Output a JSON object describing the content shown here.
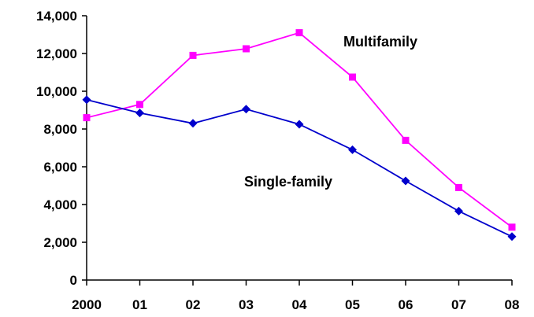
{
  "chart_data": {
    "type": "line",
    "title": "",
    "xlabel": "",
    "ylabel": "",
    "categories": [
      "2000",
      "01",
      "02",
      "03",
      "04",
      "05",
      "06",
      "07",
      "08"
    ],
    "ylim": [
      0,
      14000
    ],
    "yticks": [
      0,
      2000,
      4000,
      6000,
      8000,
      10000,
      12000,
      14000
    ],
    "ytick_labels": [
      "0",
      "2,000",
      "4,000",
      "6,000",
      "8,000",
      "10,000",
      "12,000",
      "14,000"
    ],
    "grid": false,
    "series": [
      {
        "name": "Multifamily",
        "color": "#ff00ff",
        "marker": "square",
        "values": [
          8600,
          9300,
          11900,
          12250,
          13100,
          10750,
          7400,
          4900,
          2800
        ]
      },
      {
        "name": "Single-family",
        "color": "#0000cc",
        "marker": "diamond",
        "values": [
          9550,
          8850,
          8300,
          9050,
          8250,
          6900,
          5250,
          3650,
          2300
        ]
      }
    ]
  }
}
